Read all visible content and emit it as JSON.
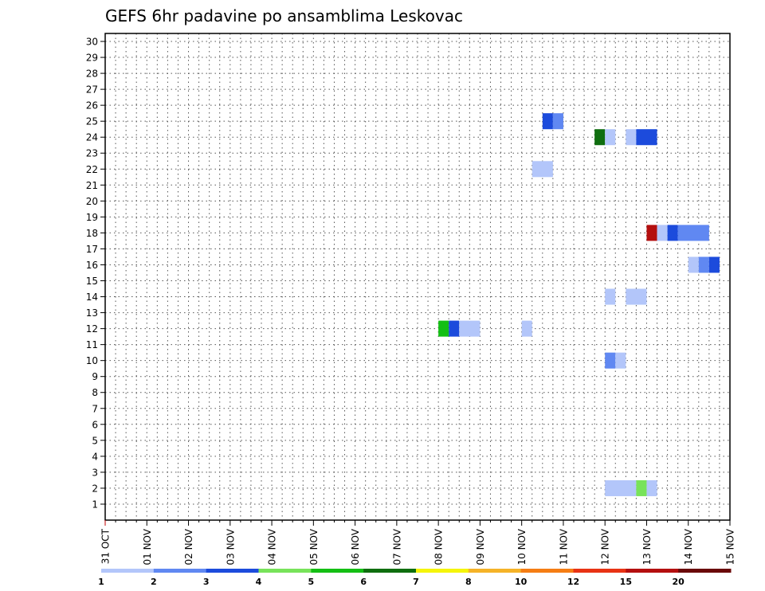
{
  "chart_data": {
    "type": "heatmap",
    "title": "GEFS 6hr padavine po ansamblima Leskovac",
    "x_tick_labels": [
      "31 OCT",
      "01 NOV",
      "02 NOV",
      "03 NOV",
      "04 NOV",
      "05 NOV",
      "06 NOV",
      "07 NOV",
      "08 NOV",
      "09 NOV",
      "10 NOV",
      "11 NOV",
      "12 NOV",
      "13 NOV",
      "14 NOV",
      "15 NOV"
    ],
    "x_range_days": [
      0,
      15
    ],
    "y_tick_labels": [
      "1",
      "2",
      "3",
      "4",
      "5",
      "6",
      "7",
      "8",
      "9",
      "10",
      "11",
      "12",
      "13",
      "14",
      "15",
      "16",
      "17",
      "18",
      "19",
      "20",
      "21",
      "22",
      "23",
      "24",
      "25",
      "26",
      "27",
      "28",
      "29",
      "30"
    ],
    "y_range": [
      0,
      30.5
    ],
    "grid": true,
    "legend": {
      "placement": "bottom",
      "colors": [
        "#b3c6fa",
        "#6088f2",
        "#1c4bdc",
        "#78e35a",
        "#14bf14",
        "#0f6e0f",
        "#f5f50a",
        "#f5b328",
        "#f57d14",
        "#e83214",
        "#b40f0f",
        "#6a0808"
      ],
      "labels": [
        "1",
        "2",
        "3",
        "4",
        "5",
        "6",
        "7",
        "8",
        "10",
        "12",
        "15",
        "20"
      ]
    },
    "cells": [
      {
        "member": 25,
        "start": "10 NOV 12z",
        "end": "10 NOV 18z",
        "category": 3
      },
      {
        "member": 25,
        "start": "10 NOV 18z",
        "end": "11 NOV 00z",
        "category": 2
      },
      {
        "member": 24,
        "start": "11 NOV 18z",
        "end": "12 NOV 00z",
        "category": 6
      },
      {
        "member": 24,
        "start": "12 NOV 00z",
        "end": "12 NOV 06z",
        "category": 1
      },
      {
        "member": 24,
        "start": "12 NOV 12z",
        "end": "12 NOV 18z",
        "category": 1
      },
      {
        "member": 24,
        "start": "12 NOV 18z",
        "end": "13 NOV 06z",
        "category": 3
      },
      {
        "member": 22,
        "start": "10 NOV 06z",
        "end": "10 NOV 18z",
        "category": 1
      },
      {
        "member": 18,
        "start": "13 NOV 00z",
        "end": "13 NOV 06z",
        "category": 11
      },
      {
        "member": 18,
        "start": "13 NOV 06z",
        "end": "13 NOV 12z",
        "category": 1
      },
      {
        "member": 18,
        "start": "13 NOV 12z",
        "end": "13 NOV 18z",
        "category": 3
      },
      {
        "member": 18,
        "start": "13 NOV 18z",
        "end": "14 NOV 12z",
        "category": 2
      },
      {
        "member": 16,
        "start": "14 NOV 00z",
        "end": "14 NOV 06z",
        "category": 1
      },
      {
        "member": 16,
        "start": "14 NOV 06z",
        "end": "14 NOV 12z",
        "category": 2
      },
      {
        "member": 16,
        "start": "14 NOV 12z",
        "end": "14 NOV 18z",
        "category": 3
      },
      {
        "member": 14,
        "start": "12 NOV 00z",
        "end": "12 NOV 06z",
        "category": 1
      },
      {
        "member": 14,
        "start": "12 NOV 12z",
        "end": "13 NOV 00z",
        "category": 1
      },
      {
        "member": 12,
        "start": "08 NOV 00z",
        "end": "08 NOV 06z",
        "category": 5
      },
      {
        "member": 12,
        "start": "08 NOV 06z",
        "end": "08 NOV 12z",
        "category": 3
      },
      {
        "member": 12,
        "start": "08 NOV 12z",
        "end": "09 NOV 00z",
        "category": 1
      },
      {
        "member": 12,
        "start": "10 NOV 00z",
        "end": "10 NOV 06z",
        "category": 1
      },
      {
        "member": 10,
        "start": "12 NOV 00z",
        "end": "12 NOV 06z",
        "category": 2
      },
      {
        "member": 10,
        "start": "12 NOV 06z",
        "end": "12 NOV 12z",
        "category": 1
      },
      {
        "member": 2,
        "start": "12 NOV 00z",
        "end": "12 NOV 18z",
        "category": 1
      },
      {
        "member": 2,
        "start": "12 NOV 18z",
        "end": "13 NOV 00z",
        "category": 4
      },
      {
        "member": 2,
        "start": "13 NOV 00z",
        "end": "13 NOV 06z",
        "category": 1
      }
    ]
  }
}
